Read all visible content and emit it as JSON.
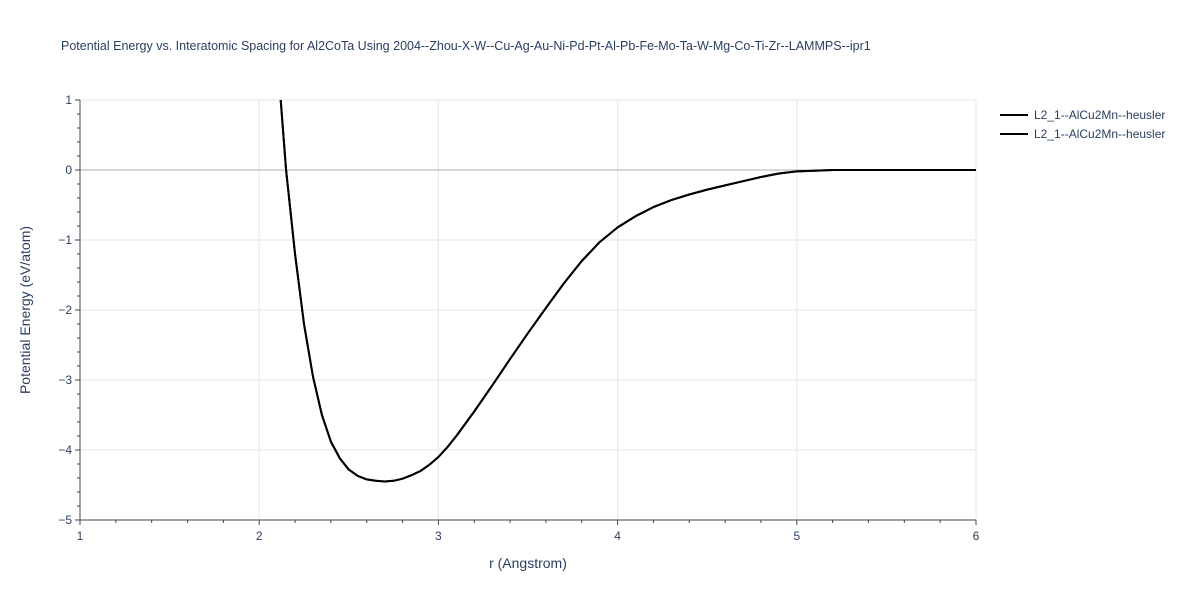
{
  "chart_data": {
    "type": "line",
    "title": "Potential Energy vs. Interatomic Spacing for Al2CoTa Using 2004--Zhou-X-W--Cu-Ag-Au-Ni-Pd-Pt-Al-Pb-Fe-Mo-Ta-W-Mg-Co-Ti-Zr--LAMMPS--ipr1",
    "xlabel": "r (Angstrom)",
    "ylabel": "Potential Energy (eV/atom)",
    "xlim": [
      1,
      6
    ],
    "ylim": [
      -5,
      1
    ],
    "x_ticks": [
      1,
      2,
      3,
      4,
      5,
      6
    ],
    "y_ticks": [
      1,
      0,
      -1,
      -2,
      -3,
      -4,
      -5
    ],
    "x_tick_labels": [
      "1",
      "2",
      "3",
      "4",
      "5",
      "6"
    ],
    "y_tick_labels": [
      "1",
      "0",
      "−1",
      "−2",
      "−3",
      "−4",
      "−5"
    ],
    "grid": true,
    "legend_position": "top-right",
    "series": [
      {
        "name": "L2_1--AlCu2Mn--heusler",
        "color": "#000000",
        "x": [
          2.12,
          2.15,
          2.2,
          2.25,
          2.3,
          2.35,
          2.4,
          2.45,
          2.5,
          2.55,
          2.6,
          2.65,
          2.7,
          2.75,
          2.8,
          2.85,
          2.9,
          2.95,
          3.0,
          3.05,
          3.1,
          3.2,
          3.3,
          3.4,
          3.5,
          3.6,
          3.7,
          3.8,
          3.9,
          4.0,
          4.1,
          4.2,
          4.3,
          4.4,
          4.5,
          4.6,
          4.7,
          4.8,
          4.9,
          5.0,
          5.1,
          5.2,
          5.3,
          5.4,
          5.5,
          5.6,
          5.7,
          5.8,
          5.9,
          6.0
        ],
        "y": [
          1.0,
          0.0,
          -1.2,
          -2.2,
          -2.95,
          -3.5,
          -3.88,
          -4.12,
          -4.28,
          -4.37,
          -4.42,
          -4.44,
          -4.45,
          -4.44,
          -4.41,
          -4.36,
          -4.3,
          -4.21,
          -4.1,
          -3.96,
          -3.8,
          -3.45,
          -3.08,
          -2.7,
          -2.33,
          -1.97,
          -1.62,
          -1.3,
          -1.03,
          -0.82,
          -0.66,
          -0.53,
          -0.43,
          -0.35,
          -0.28,
          -0.22,
          -0.16,
          -0.1,
          -0.05,
          -0.02,
          -0.01,
          0.0,
          0.0,
          0.0,
          0.0,
          0.0,
          0.0,
          0.0,
          0.0,
          0.0
        ]
      },
      {
        "name": "L2_1--AlCu2Mn--heusler",
        "color": "#000000",
        "x": [
          2.12,
          2.15,
          2.2,
          2.25,
          2.3,
          2.35,
          2.4,
          2.45,
          2.5,
          2.55,
          2.6,
          2.65,
          2.7,
          2.75,
          2.8,
          2.85,
          2.9,
          2.95,
          3.0,
          3.05,
          3.1,
          3.2,
          3.3,
          3.4,
          3.5,
          3.6,
          3.7,
          3.8,
          3.9,
          4.0,
          4.1,
          4.2,
          4.3,
          4.4,
          4.5,
          4.6,
          4.7,
          4.8,
          4.9,
          5.0,
          5.1,
          5.2,
          5.3,
          5.4,
          5.5,
          5.6,
          5.7,
          5.8,
          5.9,
          6.0
        ],
        "y": [
          1.0,
          0.0,
          -1.2,
          -2.2,
          -2.95,
          -3.5,
          -3.88,
          -4.12,
          -4.28,
          -4.37,
          -4.42,
          -4.44,
          -4.45,
          -4.44,
          -4.41,
          -4.36,
          -4.3,
          -4.21,
          -4.1,
          -3.96,
          -3.8,
          -3.45,
          -3.08,
          -2.7,
          -2.33,
          -1.97,
          -1.62,
          -1.3,
          -1.03,
          -0.82,
          -0.66,
          -0.53,
          -0.43,
          -0.35,
          -0.28,
          -0.22,
          -0.16,
          -0.1,
          -0.05,
          -0.02,
          -0.01,
          0.0,
          0.0,
          0.0,
          0.0,
          0.0,
          0.0,
          0.0,
          0.0,
          0.0
        ]
      }
    ]
  },
  "colors": {
    "text": "#2a3f5f",
    "grid": "#e5e5e5",
    "zero_line": "#c8c8c8",
    "axis_line": "#444444"
  }
}
